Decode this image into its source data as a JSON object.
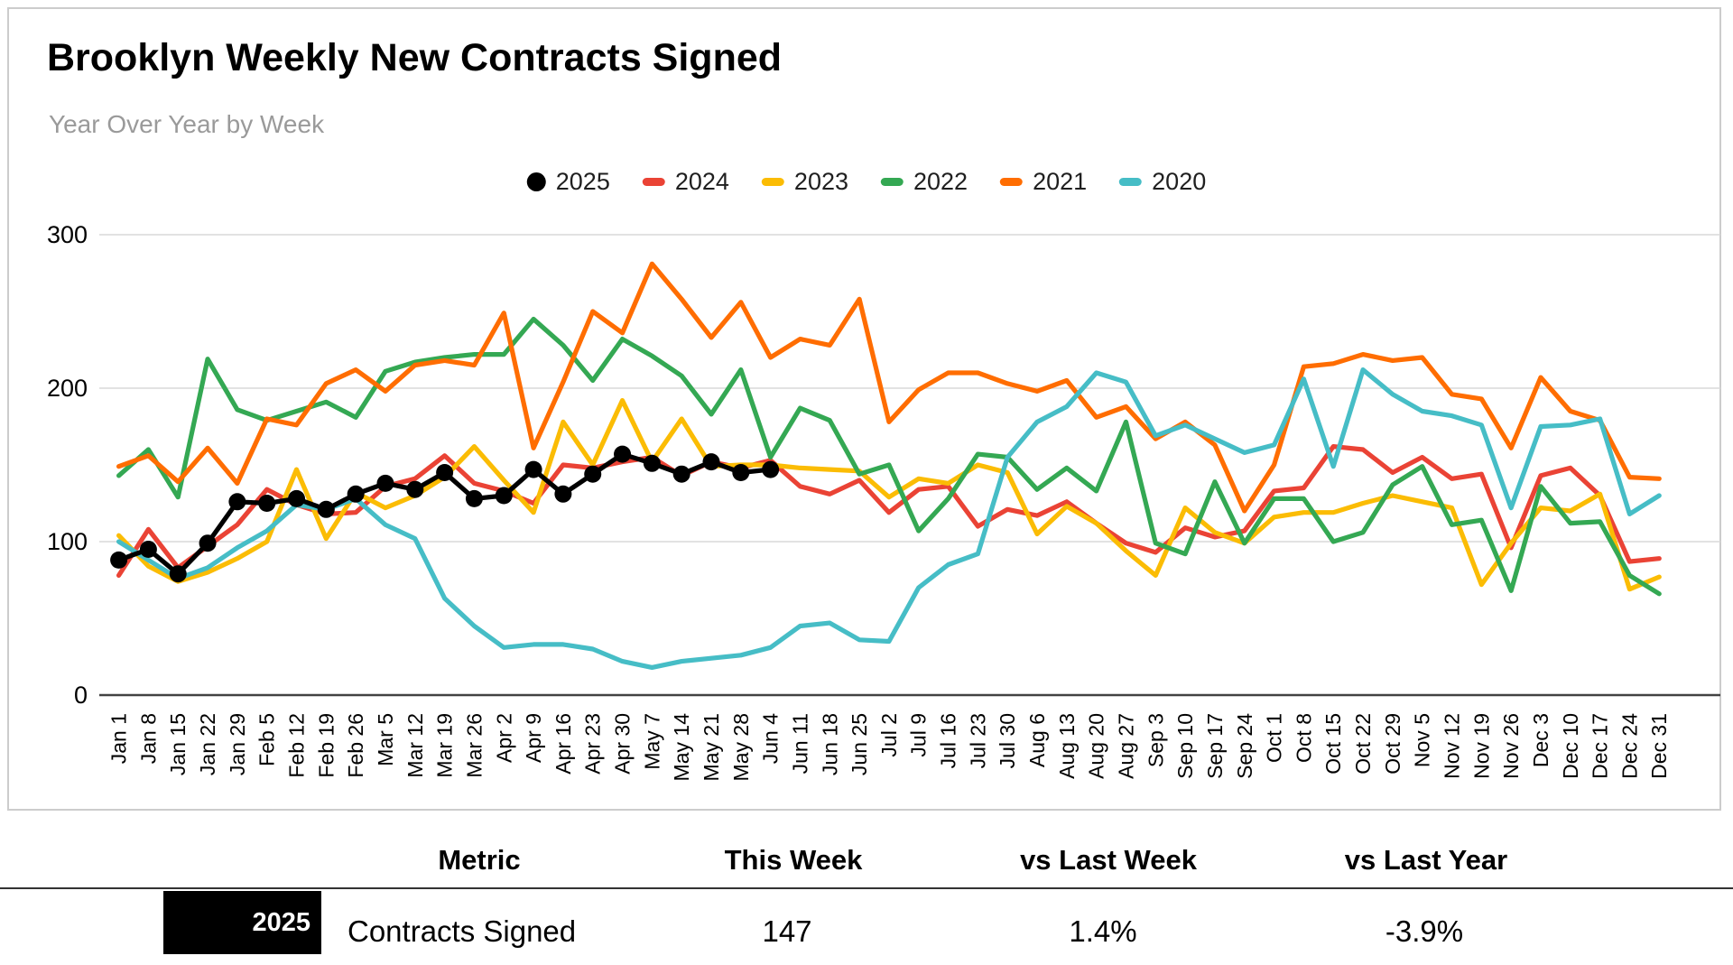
{
  "title": "Brooklyn Weekly New Contracts Signed",
  "subtitle": "Year Over Year by Week",
  "chart_data": {
    "type": "line",
    "title": "Brooklyn Weekly New Contracts Signed",
    "subtitle": "Year Over Year by Week",
    "xlabel": "",
    "ylabel": "",
    "ylim": [
      0,
      300
    ],
    "yticks": [
      0,
      100,
      200,
      300
    ],
    "ytick_labels": [
      "0",
      "100",
      "200",
      "300"
    ],
    "grid": true,
    "legend_position": "top",
    "x_labels": [
      "Jan 1",
      "Jan 8",
      "Jan 15",
      "Jan 22",
      "Jan 29",
      "Feb 5",
      "Feb 12",
      "Feb 19",
      "Feb 26",
      "Mar 5",
      "Mar 12",
      "Mar 19",
      "Mar 26",
      "Apr 2",
      "Apr 9",
      "Apr 16",
      "Apr 23",
      "Apr 30",
      "May 7",
      "May 14",
      "May 21",
      "May 28",
      "Jun 4",
      "Jun 11",
      "Jun 18",
      "Jun 25",
      "Jul 2",
      "Jul 9",
      "Jul 16",
      "Jul 23",
      "Jul 30",
      "Aug 6",
      "Aug 13",
      "Aug 20",
      "Aug 27",
      "Sep 3",
      "Sep 10",
      "Sep 17",
      "Sep 24",
      "Oct 1",
      "Oct 8",
      "Oct 15",
      "Oct 22",
      "Oct 29",
      "Nov 5",
      "Nov 12",
      "Nov 19",
      "Nov 26",
      "Dec 3",
      "Dec 10",
      "Dec 17",
      "Dec 24",
      "Dec 31"
    ],
    "series": [
      {
        "name": "2025",
        "color": "#000000",
        "marker": "circle",
        "values": [
          88,
          95,
          79,
          99,
          126,
          125,
          128,
          121,
          131,
          138,
          134,
          145,
          128,
          130,
          147,
          131,
          144,
          157,
          151,
          144,
          152,
          145,
          147
        ]
      },
      {
        "name": "2024",
        "color": "#EA4335",
        "marker": "line",
        "values": [
          78,
          108,
          83,
          97,
          111,
          134,
          124,
          118,
          119,
          136,
          141,
          156,
          138,
          133,
          125,
          150,
          148,
          152,
          155,
          143,
          152,
          148,
          153,
          136,
          131,
          140,
          119,
          134,
          136,
          110,
          121,
          117,
          126,
          112,
          99,
          93,
          109,
          103,
          107,
          133,
          135,
          162,
          160,
          145,
          155,
          141,
          144,
          96,
          143,
          148,
          130,
          87,
          89
        ]
      },
      {
        "name": "2023",
        "color": "#FBBC04",
        "marker": "line",
        "values": [
          104,
          84,
          74,
          80,
          89,
          100,
          147,
          102,
          132,
          122,
          130,
          142,
          162,
          140,
          119,
          178,
          150,
          192,
          152,
          180,
          149,
          150,
          150,
          148,
          147,
          146,
          129,
          141,
          138,
          150,
          145,
          105,
          123,
          112,
          94,
          78,
          122,
          106,
          99,
          116,
          119,
          119,
          125,
          130,
          126,
          122,
          72,
          99,
          122,
          120,
          131,
          69,
          77
        ]
      },
      {
        "name": "2022",
        "color": "#34A853",
        "marker": "line",
        "values": [
          143,
          160,
          129,
          219,
          186,
          179,
          185,
          191,
          181,
          211,
          217,
          220,
          222,
          222,
          245,
          228,
          205,
          232,
          221,
          208,
          183,
          212,
          155,
          187,
          179,
          144,
          150,
          107,
          128,
          157,
          155,
          134,
          148,
          133,
          178,
          99,
          92,
          139,
          99,
          128,
          128,
          100,
          106,
          137,
          149,
          111,
          114,
          68,
          136,
          112,
          113,
          78,
          66
        ]
      },
      {
        "name": "2021",
        "color": "#FF6D01",
        "marker": "line",
        "values": [
          149,
          156,
          139,
          161,
          138,
          180,
          176,
          203,
          212,
          198,
          215,
          218,
          215,
          249,
          161,
          204,
          250,
          236,
          281,
          258,
          233,
          256,
          220,
          232,
          228,
          258,
          178,
          199,
          210,
          210,
          203,
          198,
          205,
          181,
          188,
          167,
          178,
          163,
          120,
          150,
          214,
          216,
          222,
          218,
          220,
          196,
          193,
          161,
          207,
          185,
          179,
          142,
          141
        ]
      },
      {
        "name": "2020",
        "color": "#46BDC6",
        "marker": "line",
        "values": [
          100,
          88,
          76,
          83,
          96,
          107,
          124,
          121,
          128,
          111,
          102,
          63,
          45,
          31,
          33,
          33,
          30,
          22,
          18,
          22,
          24,
          26,
          31,
          45,
          47,
          36,
          35,
          70,
          85,
          92,
          155,
          178,
          188,
          210,
          204,
          169,
          176,
          167,
          158,
          163,
          206,
          149,
          212,
          196,
          185,
          182,
          176,
          122,
          175,
          176,
          180,
          118,
          130
        ]
      }
    ]
  },
  "table": {
    "headers": [
      "Metric",
      "This Week",
      "vs Last Week",
      "vs Last Year"
    ],
    "row": {
      "year": "2025",
      "metric": "Contracts Signed",
      "this_week": "147",
      "vs_last_week": "1.4%",
      "vs_last_year": "-3.9%"
    }
  }
}
